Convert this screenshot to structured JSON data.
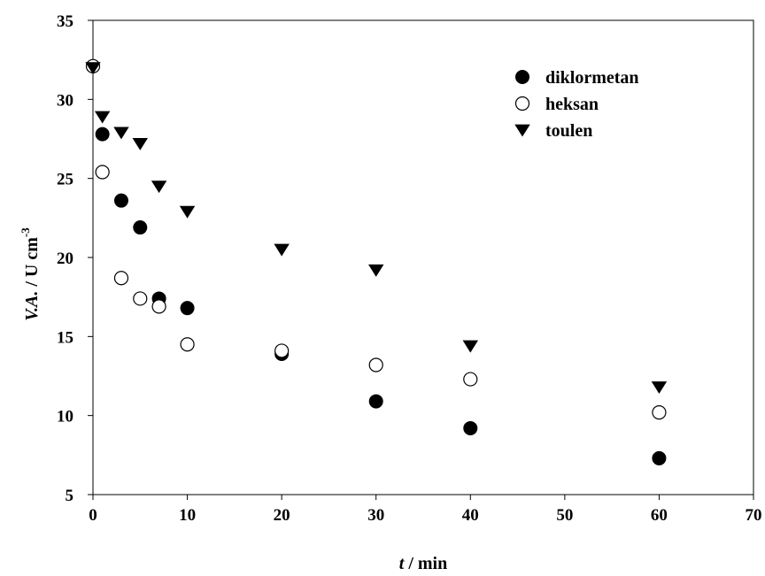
{
  "chart_data": {
    "type": "scatter",
    "xlabel": {
      "symbol": "t",
      "unit": " / min"
    },
    "ylabel": {
      "symbol": "V.A.",
      "unit": " / U cm",
      "superscript": "-3"
    },
    "xlim": [
      0,
      70
    ],
    "ylim": [
      5,
      35
    ],
    "xticks": [
      0,
      10,
      20,
      30,
      40,
      50,
      60,
      70
    ],
    "yticks": [
      5,
      10,
      15,
      20,
      25,
      30,
      35
    ],
    "grid": false,
    "legend_position": "top-right",
    "series": [
      {
        "name": "diklormetan",
        "marker": "filled-circle",
        "color": "#000000",
        "points": [
          [
            0,
            32.1
          ],
          [
            1,
            27.8
          ],
          [
            3,
            23.6
          ],
          [
            5,
            21.9
          ],
          [
            7,
            17.4
          ],
          [
            10,
            16.8
          ],
          [
            20,
            13.9
          ],
          [
            30,
            10.9
          ],
          [
            40,
            9.2
          ],
          [
            60,
            7.3
          ]
        ]
      },
      {
        "name": "heksan",
        "marker": "open-circle",
        "color": "#000000",
        "points": [
          [
            0,
            32.1
          ],
          [
            1,
            25.4
          ],
          [
            3,
            18.7
          ],
          [
            5,
            17.4
          ],
          [
            7,
            16.9
          ],
          [
            10,
            14.5
          ],
          [
            20,
            14.1
          ],
          [
            30,
            13.2
          ],
          [
            40,
            12.3
          ],
          [
            60,
            10.2
          ]
        ]
      },
      {
        "name": "toulen",
        "marker": "filled-triangle-down",
        "color": "#000000",
        "points": [
          [
            0,
            32.0
          ],
          [
            1,
            28.9
          ],
          [
            3,
            27.9
          ],
          [
            5,
            27.2
          ],
          [
            7,
            24.5
          ],
          [
            10,
            22.9
          ],
          [
            20,
            20.5
          ],
          [
            30,
            19.2
          ],
          [
            40,
            14.4
          ],
          [
            60,
            11.8
          ]
        ]
      }
    ]
  }
}
